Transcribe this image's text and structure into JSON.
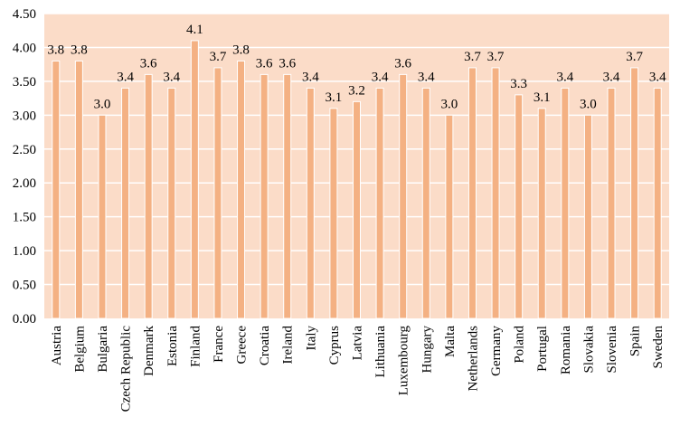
{
  "chart_data": {
    "type": "bar",
    "title": "",
    "xlabel": "",
    "ylabel": "",
    "ylim": [
      0,
      4.5
    ],
    "ytick_step": 0.5,
    "grid": true,
    "legend": "none",
    "colors": {
      "plot_background": "#FBDCC8",
      "bar_fill": "#F4B183",
      "bar_edge": "#FFFFFF",
      "gridline": "#FFFFFF"
    },
    "categories": [
      "Austria",
      "Belgium",
      "Bulgaria",
      "Czech Republic",
      "Denmark",
      "Estonia",
      "Finland",
      "France",
      "Greece",
      "Croatia",
      "Ireland",
      "Italy",
      "Cyprus",
      "Latvia",
      "Lithuania",
      "Luxembourg",
      "Hungary",
      "Malta",
      "Netherlands",
      "Germany",
      "Poland",
      "Portugal",
      "Romania",
      "Slovakia",
      "Slovenia",
      "Spain",
      "Sweden"
    ],
    "values": [
      3.8,
      3.8,
      3.0,
      3.4,
      3.6,
      3.4,
      4.1,
      3.7,
      3.8,
      3.6,
      3.6,
      3.4,
      3.1,
      3.2,
      3.4,
      3.6,
      3.4,
      3.0,
      3.7,
      3.7,
      3.3,
      3.1,
      3.4,
      3.0,
      3.4,
      3.7,
      3.4
    ],
    "yticks": [
      "0.00",
      "0.50",
      "1.00",
      "1.50",
      "2.00",
      "2.50",
      "3.00",
      "3.50",
      "4.00",
      "4.50"
    ]
  }
}
